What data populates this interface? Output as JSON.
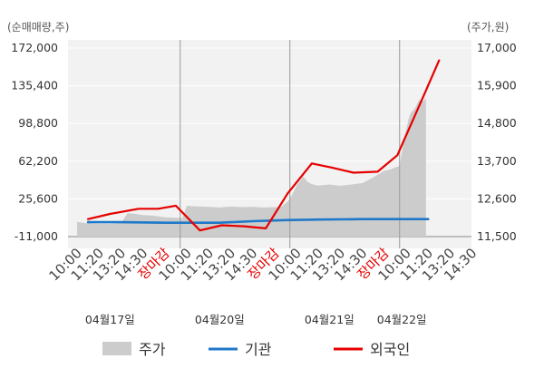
{
  "chart_data": {
    "type": "line",
    "left_axis_unit": "(순매매량,주)",
    "right_axis_unit": "(주가,원)",
    "left_ylim": [
      -11000,
      172000
    ],
    "left_ticks": [
      "172,000",
      "135,400",
      "98,800",
      "62,200",
      "25,600",
      "-11,000"
    ],
    "right_ylim": [
      11500,
      17000
    ],
    "right_ticks": [
      "17,000",
      "15,900",
      "14,800",
      "13,700",
      "12,600",
      "11,500"
    ],
    "x_ticks": [
      {
        "label": "10:00",
        "close": false
      },
      {
        "label": "11:20",
        "close": false
      },
      {
        "label": "13:20",
        "close": false
      },
      {
        "label": "14:30",
        "close": false
      },
      {
        "label": "장마감",
        "close": true
      },
      {
        "label": "10:00",
        "close": false
      },
      {
        "label": "11:20",
        "close": false
      },
      {
        "label": "13:20",
        "close": false
      },
      {
        "label": "14:30",
        "close": false
      },
      {
        "label": "장마감",
        "close": true
      },
      {
        "label": "10:00",
        "close": false
      },
      {
        "label": "11:20",
        "close": false
      },
      {
        "label": "13:20",
        "close": false
      },
      {
        "label": "14:30",
        "close": false
      },
      {
        "label": "장마감",
        "close": true
      },
      {
        "label": "10:00",
        "close": false
      },
      {
        "label": "11:20",
        "close": false
      },
      {
        "label": "13:20",
        "close": false
      },
      {
        "label": "14:30",
        "close": false
      }
    ],
    "dates": [
      {
        "label": "04월17일",
        "tick_index": 1.5
      },
      {
        "label": "04월20일",
        "tick_index": 6.5
      },
      {
        "label": "04월21일",
        "tick_index": 11.5
      },
      {
        "label": "04월22일",
        "tick_index": 14.8
      }
    ],
    "day_dividers": [
      4.7,
      9.7,
      14.7
    ],
    "series": [
      {
        "name": "주가",
        "axis": "right",
        "type": "area",
        "color": "#cccccc",
        "x": [
          0,
          0.3,
          0.6,
          1,
          1.5,
          2,
          2.3,
          2.6,
          3,
          3.5,
          4,
          4.5,
          4.8,
          5,
          5.5,
          6,
          6.5,
          7,
          7.5,
          8,
          8.5,
          9,
          9.3,
          9.6,
          9.8,
          10,
          10.3,
          10.5,
          10.7,
          11,
          11.5,
          12,
          12.5,
          13,
          13.5,
          14,
          14.3,
          14.5,
          14.7,
          14.9,
          15.1,
          15.2,
          15.4,
          15.6,
          15.8,
          15.9
        ],
        "y": [
          11930,
          11900,
          11880,
          11870,
          11870,
          11890,
          12180,
          12170,
          12130,
          12110,
          12060,
          12050,
          12040,
          12400,
          12380,
          12370,
          12350,
          12380,
          12360,
          12370,
          12350,
          12360,
          12370,
          12520,
          12720,
          12980,
          13250,
          13100,
          13030,
          12990,
          13020,
          12980,
          13020,
          13060,
          13230,
          13420,
          13460,
          13520,
          13560,
          14330,
          14900,
          15100,
          15250,
          15500,
          15450,
          15550
        ]
      },
      {
        "name": "기관",
        "axis": "left",
        "color": "#1f78c8",
        "x": [
          0.5,
          2,
          4,
          6.5,
          8,
          9.5,
          11,
          13,
          14.5,
          16
        ],
        "y": [
          3000,
          3000,
          2500,
          2500,
          4000,
          5000,
          5500,
          6000,
          6000,
          6000
        ]
      },
      {
        "name": "외국인",
        "axis": "left",
        "color": "#e60000",
        "x": [
          0.5,
          1.5,
          2.8,
          3.7,
          4.5,
          5.6,
          6.6,
          7.6,
          8.6,
          9.6,
          10.7,
          11.6,
          12.6,
          13.7,
          14.6,
          15.8,
          16.5
        ],
        "y": [
          6000,
          11000,
          16000,
          16000,
          19000,
          -5000,
          0,
          -1000,
          -3000,
          31000,
          60000,
          56000,
          51000,
          52000,
          68000,
          126000,
          160000
        ]
      }
    ],
    "legend": {
      "position": "bottom",
      "items": [
        "주가",
        "기관",
        "외국인"
      ]
    }
  }
}
